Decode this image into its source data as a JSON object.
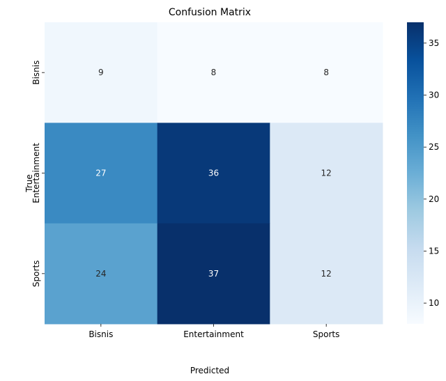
{
  "chart_data": {
    "type": "heatmap",
    "title": "Confusion Matrix",
    "xlabel": "Predicted",
    "ylabel": "True",
    "x_categories": [
      "Bisnis",
      "Entertainment",
      "Sports"
    ],
    "y_categories": [
      "Bisnis",
      "Entertainment",
      "Sports"
    ],
    "values": [
      [
        9,
        8,
        8
      ],
      [
        27,
        36,
        12
      ],
      [
        24,
        37,
        12
      ]
    ],
    "colormap": "Blues",
    "color_range": [
      8,
      37
    ],
    "colorbar_ticks": [
      "10",
      "15",
      "20",
      "25",
      "30",
      "35"
    ],
    "colorbar_tick_values": [
      10,
      15,
      20,
      25,
      30,
      35
    ]
  }
}
